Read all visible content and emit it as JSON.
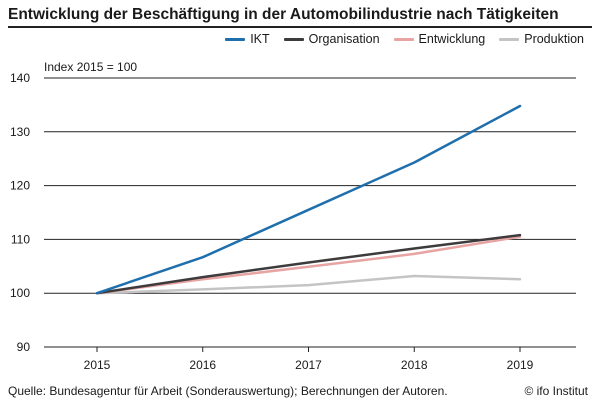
{
  "chart_data": {
    "type": "line",
    "title": "Entwicklung der Beschäftigung in der Automobilindustrie nach Tätigkeiten",
    "subtitle": "Index 2015 = 100",
    "xlabel": "",
    "ylabel": "",
    "x": [
      "2015",
      "2016",
      "2017",
      "2018",
      "2019"
    ],
    "ylim": [
      90,
      140
    ],
    "yticks": [
      "140",
      "130",
      "120",
      "110",
      "100",
      "90"
    ],
    "grid": true,
    "legend_position": "top-right",
    "series": [
      {
        "name": "IKT",
        "color": "#1f6fad",
        "values": [
          100,
          106.7,
          115.5,
          124.3,
          134.8
        ]
      },
      {
        "name": "Organisation",
        "color": "#3d3b3c",
        "values": [
          100,
          103.0,
          105.7,
          108.3,
          110.8
        ]
      },
      {
        "name": "Entwicklung",
        "color": "#e8a3a3",
        "values": [
          100,
          102.6,
          104.9,
          107.3,
          110.5
        ]
      },
      {
        "name": "Produktion",
        "color": "#c4c4c4",
        "values": [
          100,
          100.7,
          101.5,
          103.2,
          102.6
        ]
      }
    ]
  },
  "footer": {
    "source": "Quelle: Bundesagentur für Arbeit (Sonderauswertung); Berechnungen der Autoren.",
    "copyright": "© ifo Institut"
  }
}
